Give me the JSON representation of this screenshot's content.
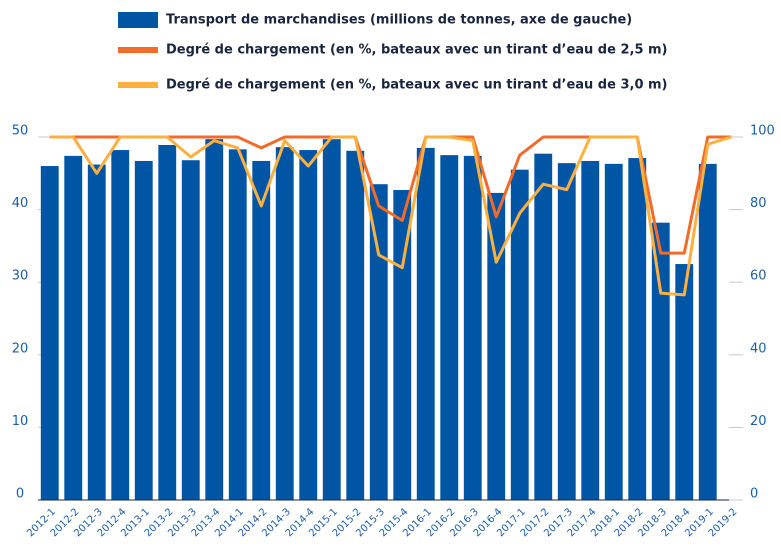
{
  "chart_data": {
    "type": "bar",
    "categories": [
      "2012-1",
      "2012-2",
      "2012-3",
      "2012-4",
      "2013-1",
      "2013-2",
      "2013-3",
      "2013-4",
      "2014-1",
      "2014-2",
      "2014-3",
      "2014-4",
      "2015-1",
      "2015-2",
      "2015-3",
      "2015-4",
      "2016-1",
      "2016-2",
      "2016-3",
      "2016-4",
      "2017-1",
      "2017-2",
      "2017-3",
      "2017-4",
      "2018-1",
      "2018-2",
      "2018-3",
      "2018-4",
      "2019-1",
      "2019-2"
    ],
    "series": [
      {
        "name": "Transport de marchandises (millions de tonnes, axe de gauche)",
        "type": "bar",
        "color": "#0055a5",
        "values": [
          46,
          47.4,
          46.2,
          48.2,
          46.7,
          48.9,
          46.8,
          49.7,
          48.3,
          46.7,
          48.6,
          48.2,
          49.7,
          48.1,
          43.5,
          42.7,
          48.5,
          47.5,
          47.4,
          42.3,
          45.5,
          47.7,
          46.4,
          46.7,
          46.3,
          47.1,
          38.2,
          32.5,
          46.3,
          null
        ]
      },
      {
        "name": "Degré de chargement (en %, bateaux avec un tirant d’eau de 2,5 m)",
        "type": "line",
        "axis": "y2",
        "color": "#f26b2a",
        "values": [
          100,
          100,
          100,
          100,
          100,
          100,
          100,
          100,
          100,
          97,
          100,
          100,
          100,
          100,
          81,
          77,
          100,
          100,
          100,
          78,
          95,
          100,
          100,
          100,
          100,
          100,
          68,
          68,
          100,
          100
        ]
      },
      {
        "name": "Degré de chargement (en %, bateaux avec un tirant d’eau de 3,0 m)",
        "type": "line",
        "axis": "y2",
        "color": "#fbb040",
        "values": [
          100,
          100,
          90,
          100,
          100,
          100,
          94.5,
          99,
          97,
          81,
          99,
          92,
          100,
          100,
          67.5,
          64,
          100,
          100,
          99,
          65.5,
          79,
          87,
          85.5,
          100,
          100,
          100,
          57,
          56.5,
          98,
          100
        ]
      }
    ],
    "ylim": [
      0,
      50
    ],
    "yticks": [
      0,
      10,
      20,
      30,
      40,
      50
    ],
    "y2lim": [
      0,
      100
    ],
    "y2ticks": [
      0,
      20,
      40,
      60,
      80,
      100
    ],
    "grid": false,
    "legend": "top"
  }
}
